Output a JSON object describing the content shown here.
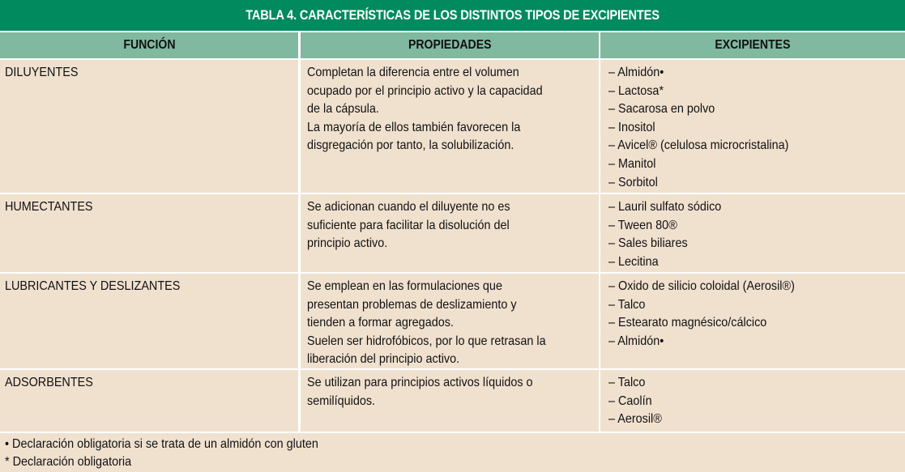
{
  "table": {
    "title": "TABLA 4. CARACTERÍSTICAS DE LOS DISTINTOS TIPOS DE EXCIPIENTES",
    "headers": [
      "FUNCIÓN",
      "PROPIEDADES",
      "EXCIPIENTES"
    ],
    "rows": [
      {
        "funcion": "DILUYENTES",
        "propiedades": [
          "Completan la diferencia entre el volumen",
          "ocupado por el principio activo y la capacidad",
          "de la cápsula.",
          "La mayoría de ellos también favorecen la",
          "disgregación por tanto, la solubilización."
        ],
        "excipientes": [
          "– Almidón•",
          "– Lactosa*",
          "– Sacarosa en polvo",
          "– Inositol",
          "– Avicel® (celulosa microcristalina)",
          "– Manitol",
          "– Sorbitol"
        ]
      },
      {
        "funcion": "HUMECTANTES",
        "propiedades": [
          "Se adicionan cuando el diluyente no es",
          "suficiente para facilitar la disolución del",
          "principio activo."
        ],
        "excipientes": [
          "– Lauril sulfato sódico",
          "– Tween 80®",
          "– Sales biliares",
          "– Lecitina"
        ]
      },
      {
        "funcion": "LUBRICANTES Y DESLIZANTES",
        "propiedades": [
          "Se emplean en las formulaciones que",
          "presentan problemas de deslizamiento y",
          "tienden a formar agregados.",
          "Suelen ser hidrofóbicos, por lo que retrasan la",
          "liberación del principio activo."
        ],
        "excipientes": [
          "– Oxido de silicio coloidal (Aerosil®)",
          "– Talco",
          "– Estearato magnésico/cálcico",
          "– Almidón•"
        ]
      },
      {
        "funcion": "ADSORBENTES",
        "propiedades": [
          "Se utilizan para principios activos líquidos o",
          "semilíquidos."
        ],
        "excipientes": [
          "– Talco",
          "– Caolín",
          "– Aerosil®"
        ]
      }
    ],
    "footnotes": [
      "• Declaración obligatoria si se trata de un almidón con gluten",
      "* Declaración obligatoria"
    ]
  },
  "colors": {
    "title_bg": "#008a5e",
    "header_bg": "#80b8a0",
    "cell_bg": "#f0e1cf",
    "divider": "#ffffff"
  }
}
